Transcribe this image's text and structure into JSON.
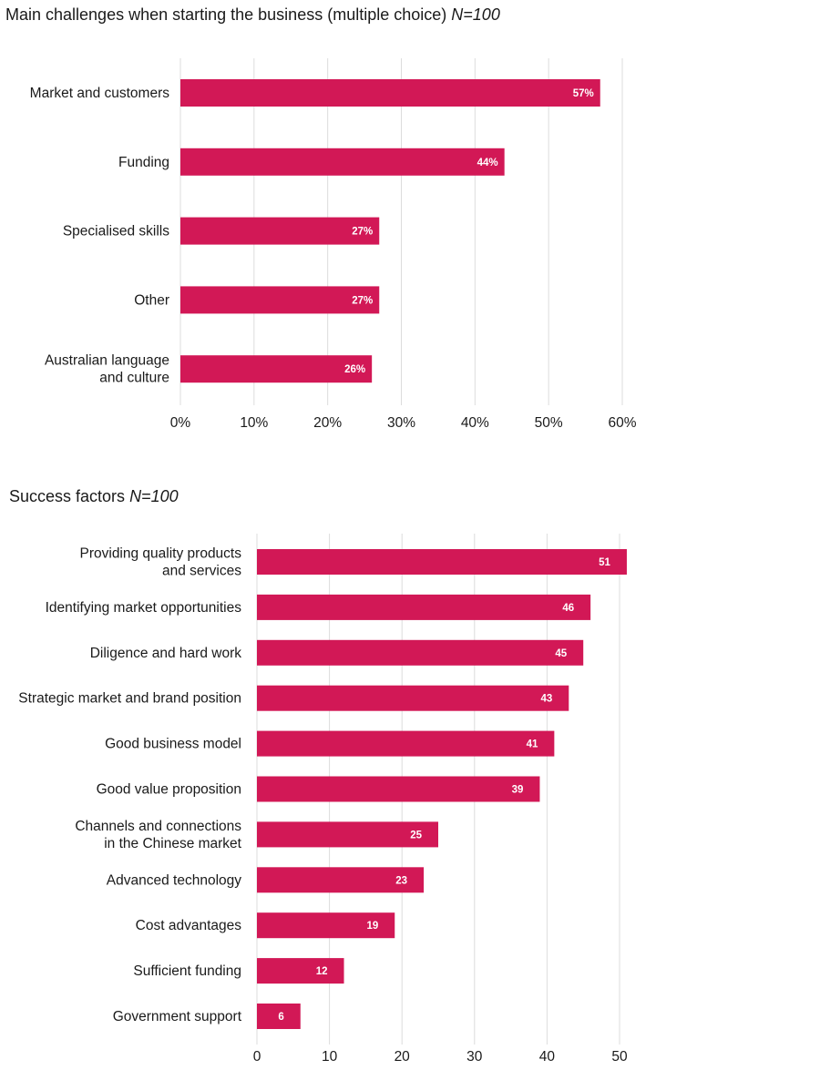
{
  "chart_data": [
    {
      "type": "bar",
      "orientation": "horizontal",
      "title": "Main challenges when starting the business (multiple choice)",
      "title_suffix": "N=100",
      "categories": [
        [
          "Market and customers"
        ],
        [
          "Funding"
        ],
        [
          "Specialised skills"
        ],
        [
          "Other"
        ],
        [
          "Australian language",
          "and culture"
        ]
      ],
      "values": [
        57,
        44,
        27,
        27,
        26
      ],
      "data_labels": [
        "57%",
        "44%",
        "27%",
        "27%",
        "26%"
      ],
      "xlim": [
        0,
        60
      ],
      "ticks": [
        0,
        10,
        20,
        30,
        40,
        50,
        60
      ],
      "tick_labels": [
        "0%",
        "10%",
        "20%",
        "30%",
        "40%",
        "50%",
        "60%"
      ],
      "grid": true,
      "color": "#d21856"
    },
    {
      "type": "bar",
      "orientation": "horizontal",
      "title": "Success factors",
      "title_suffix": "N=100",
      "categories": [
        [
          "Providing quality products",
          "and services"
        ],
        [
          "Identifying market opportunities"
        ],
        [
          "Diligence and hard work"
        ],
        [
          "Strategic market and brand position"
        ],
        [
          "Good business model"
        ],
        [
          "Good value proposition"
        ],
        [
          "Channels and connections",
          "in the Chinese market"
        ],
        [
          "Advanced technology"
        ],
        [
          "Cost advantages"
        ],
        [
          "Sufficient funding"
        ],
        [
          "Government support"
        ]
      ],
      "values": [
        51,
        46,
        45,
        43,
        41,
        39,
        25,
        23,
        19,
        12,
        6
      ],
      "data_labels": [
        "51",
        "46",
        "45",
        "43",
        "41",
        "39",
        "25",
        "23",
        "19",
        "12",
        "6"
      ],
      "xlim": [
        0,
        50
      ],
      "ticks": [
        0,
        10,
        20,
        30,
        40,
        50
      ],
      "tick_labels": [
        "0",
        "10",
        "20",
        "30",
        "40",
        "50"
      ],
      "grid": true,
      "color": "#d21856"
    }
  ]
}
